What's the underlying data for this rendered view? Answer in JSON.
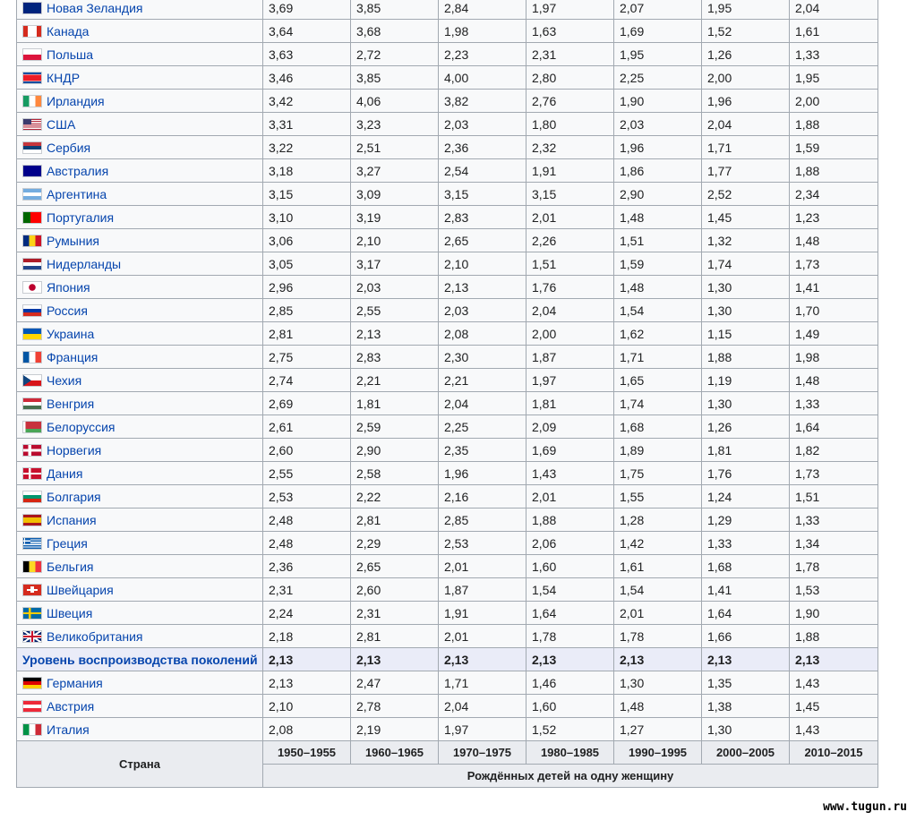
{
  "rows_before": [
    {
      "country": "Новая Зеландия",
      "flag": "nz",
      "values": [
        "3,69",
        "3,85",
        "2,84",
        "1,97",
        "2,07",
        "1,95",
        "2,04"
      ]
    },
    {
      "country": "Канада",
      "flag": "ca",
      "values": [
        "3,64",
        "3,68",
        "1,98",
        "1,63",
        "1,69",
        "1,52",
        "1,61"
      ]
    },
    {
      "country": "Польша",
      "flag": "pl",
      "values": [
        "3,63",
        "2,72",
        "2,23",
        "2,31",
        "1,95",
        "1,26",
        "1,33"
      ]
    },
    {
      "country": "КНДР",
      "flag": "kp",
      "values": [
        "3,46",
        "3,85",
        "4,00",
        "2,80",
        "2,25",
        "2,00",
        "1,95"
      ]
    },
    {
      "country": "Ирландия",
      "flag": "ie",
      "values": [
        "3,42",
        "4,06",
        "3,82",
        "2,76",
        "1,90",
        "1,96",
        "2,00"
      ]
    },
    {
      "country": "США",
      "flag": "us",
      "values": [
        "3,31",
        "3,23",
        "2,03",
        "1,80",
        "2,03",
        "2,04",
        "1,88"
      ]
    },
    {
      "country": "Сербия",
      "flag": "rs",
      "values": [
        "3,22",
        "2,51",
        "2,36",
        "2,32",
        "1,96",
        "1,71",
        "1,59"
      ]
    },
    {
      "country": "Австралия",
      "flag": "au",
      "values": [
        "3,18",
        "3,27",
        "2,54",
        "1,91",
        "1,86",
        "1,77",
        "1,88"
      ]
    },
    {
      "country": "Аргентина",
      "flag": "ar",
      "values": [
        "3,15",
        "3,09",
        "3,15",
        "3,15",
        "2,90",
        "2,52",
        "2,34"
      ]
    },
    {
      "country": "Португалия",
      "flag": "pt",
      "values": [
        "3,10",
        "3,19",
        "2,83",
        "2,01",
        "1,48",
        "1,45",
        "1,23"
      ]
    },
    {
      "country": "Румыния",
      "flag": "ro",
      "values": [
        "3,06",
        "2,10",
        "2,65",
        "2,26",
        "1,51",
        "1,32",
        "1,48"
      ]
    },
    {
      "country": "Нидерланды",
      "flag": "nl",
      "values": [
        "3,05",
        "3,17",
        "2,10",
        "1,51",
        "1,59",
        "1,74",
        "1,73"
      ]
    },
    {
      "country": "Япония",
      "flag": "jp",
      "values": [
        "2,96",
        "2,03",
        "2,13",
        "1,76",
        "1,48",
        "1,30",
        "1,41"
      ]
    },
    {
      "country": "Россия",
      "flag": "ru",
      "values": [
        "2,85",
        "2,55",
        "2,03",
        "2,04",
        "1,54",
        "1,30",
        "1,70"
      ]
    },
    {
      "country": "Украина",
      "flag": "ua",
      "values": [
        "2,81",
        "2,13",
        "2,08",
        "2,00",
        "1,62",
        "1,15",
        "1,49"
      ]
    },
    {
      "country": "Франция",
      "flag": "fr",
      "values": [
        "2,75",
        "2,83",
        "2,30",
        "1,87",
        "1,71",
        "1,88",
        "1,98"
      ]
    },
    {
      "country": "Чехия",
      "flag": "cz",
      "values": [
        "2,74",
        "2,21",
        "2,21",
        "1,97",
        "1,65",
        "1,19",
        "1,48"
      ]
    },
    {
      "country": "Венгрия",
      "flag": "hu",
      "values": [
        "2,69",
        "1,81",
        "2,04",
        "1,81",
        "1,74",
        "1,30",
        "1,33"
      ]
    },
    {
      "country": "Белоруссия",
      "flag": "by",
      "values": [
        "2,61",
        "2,59",
        "2,25",
        "2,09",
        "1,68",
        "1,26",
        "1,64"
      ]
    },
    {
      "country": "Норвегия",
      "flag": "no",
      "values": [
        "2,60",
        "2,90",
        "2,35",
        "1,69",
        "1,89",
        "1,81",
        "1,82"
      ]
    },
    {
      "country": "Дания",
      "flag": "dk",
      "values": [
        "2,55",
        "2,58",
        "1,96",
        "1,43",
        "1,75",
        "1,76",
        "1,73"
      ]
    },
    {
      "country": "Болгария",
      "flag": "bg",
      "values": [
        "2,53",
        "2,22",
        "2,16",
        "2,01",
        "1,55",
        "1,24",
        "1,51"
      ]
    },
    {
      "country": "Испания",
      "flag": "es",
      "values": [
        "2,48",
        "2,81",
        "2,85",
        "1,88",
        "1,28",
        "1,29",
        "1,33"
      ]
    },
    {
      "country": "Греция",
      "flag": "gr",
      "values": [
        "2,48",
        "2,29",
        "2,53",
        "2,06",
        "1,42",
        "1,33",
        "1,34"
      ]
    },
    {
      "country": "Бельгия",
      "flag": "be",
      "values": [
        "2,36",
        "2,65",
        "2,01",
        "1,60",
        "1,61",
        "1,68",
        "1,78"
      ]
    },
    {
      "country": "Швейцария",
      "flag": "ch",
      "values": [
        "2,31",
        "2,60",
        "1,87",
        "1,54",
        "1,54",
        "1,41",
        "1,53"
      ]
    },
    {
      "country": "Швеция",
      "flag": "se",
      "values": [
        "2,24",
        "2,31",
        "1,91",
        "1,64",
        "2,01",
        "1,64",
        "1,90"
      ]
    },
    {
      "country": "Великобритания",
      "flag": "gb",
      "values": [
        "2,18",
        "2,81",
        "2,01",
        "1,78",
        "1,78",
        "1,66",
        "1,88"
      ]
    }
  ],
  "replacement_row": {
    "label": "Уровень воспроизводства поколений",
    "values": [
      "2,13",
      "2,13",
      "2,13",
      "2,13",
      "2,13",
      "2,13",
      "2,13"
    ]
  },
  "rows_after": [
    {
      "country": "Германия",
      "flag": "de",
      "values": [
        "2,13",
        "2,47",
        "1,71",
        "1,46",
        "1,30",
        "1,35",
        "1,43"
      ]
    },
    {
      "country": "Австрия",
      "flag": "at",
      "values": [
        "2,10",
        "2,78",
        "2,04",
        "1,60",
        "1,48",
        "1,38",
        "1,45"
      ]
    },
    {
      "country": "Италия",
      "flag": "it",
      "values": [
        "2,08",
        "2,19",
        "1,97",
        "1,52",
        "1,27",
        "1,30",
        "1,43"
      ]
    }
  ],
  "footer": {
    "country_header": "Страна",
    "periods": [
      "1950–1955",
      "1960–1965",
      "1970–1975",
      "1980–1985",
      "1990–1995",
      "2000–2005",
      "2010–2015"
    ],
    "caption": "Рождённых детей на одну женщину"
  },
  "watermark": "www.tugun.ru",
  "colors": {
    "link": "#0645ad",
    "cell_bg": "#f8f9fa",
    "header_bg": "#eaecf0",
    "highlight_bg": "#eaecf8",
    "border": "#a2a9b1"
  }
}
